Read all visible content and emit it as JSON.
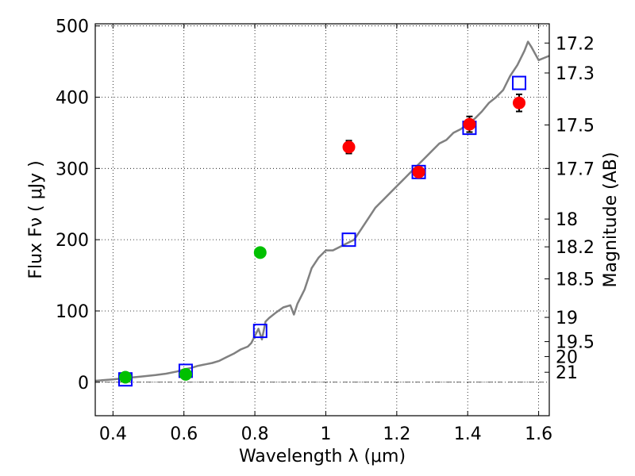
{
  "chart_data": {
    "type": "scatter",
    "xlabel": "Wavelength  λ (μm)",
    "ylabel": "Flux  Fν  ( μJy )",
    "ylabel_right": "Magnitude (AB)",
    "xlim": [
      0.35,
      1.63
    ],
    "ylim": [
      -47,
      503
    ],
    "grid": true,
    "x_ticks": [
      0.4,
      0.6,
      0.8,
      1.0,
      1.2,
      1.4,
      1.6
    ],
    "x_tick_labels": [
      "0.4",
      "0.6",
      "0.8",
      "1",
      "1.2",
      "1.4",
      "1.6"
    ],
    "y_ticks": [
      0,
      100,
      200,
      300,
      400,
      500
    ],
    "y_tick_labels": [
      "0",
      "100",
      "200",
      "300",
      "400",
      "500"
    ],
    "right_ticks": [
      {
        "flux": 476,
        "label": "17.2"
      },
      {
        "flux": 434,
        "label": "17.3"
      },
      {
        "flux": 361,
        "label": "17.5"
      },
      {
        "flux": 300,
        "label": "17.7"
      },
      {
        "flux": 229,
        "label": "18"
      },
      {
        "flux": 190,
        "label": "18.2"
      },
      {
        "flux": 145,
        "label": "18.5"
      },
      {
        "flux": 91,
        "label": "19"
      },
      {
        "flux": 57,
        "label": "19.5"
      },
      {
        "flux": 36,
        "label": "20"
      },
      {
        "flux": 14,
        "label": "21"
      }
    ],
    "zero_line": 0,
    "series": [
      {
        "kind": "line",
        "color": "#808080",
        "points": [
          [
            0.35,
            2
          ],
          [
            0.4,
            4
          ],
          [
            0.44,
            6
          ],
          [
            0.48,
            8
          ],
          [
            0.52,
            10
          ],
          [
            0.55,
            12
          ],
          [
            0.58,
            15
          ],
          [
            0.6,
            18
          ],
          [
            0.62,
            20
          ],
          [
            0.64,
            23
          ],
          [
            0.66,
            25
          ],
          [
            0.68,
            27
          ],
          [
            0.7,
            30
          ],
          [
            0.72,
            35
          ],
          [
            0.74,
            40
          ],
          [
            0.76,
            46
          ],
          [
            0.78,
            50
          ],
          [
            0.79,
            55
          ],
          [
            0.8,
            65
          ],
          [
            0.81,
            75
          ],
          [
            0.82,
            60
          ],
          [
            0.83,
            85
          ],
          [
            0.84,
            90
          ],
          [
            0.86,
            98
          ],
          [
            0.88,
            105
          ],
          [
            0.9,
            108
          ],
          [
            0.91,
            95
          ],
          [
            0.92,
            110
          ],
          [
            0.94,
            130
          ],
          [
            0.96,
            160
          ],
          [
            0.98,
            175
          ],
          [
            1.0,
            185
          ],
          [
            1.02,
            185
          ],
          [
            1.04,
            190
          ],
          [
            1.06,
            195
          ],
          [
            1.08,
            200
          ],
          [
            1.1,
            215
          ],
          [
            1.12,
            230
          ],
          [
            1.14,
            245
          ],
          [
            1.16,
            255
          ],
          [
            1.18,
            265
          ],
          [
            1.2,
            275
          ],
          [
            1.22,
            285
          ],
          [
            1.24,
            295
          ],
          [
            1.26,
            305
          ],
          [
            1.28,
            315
          ],
          [
            1.3,
            325
          ],
          [
            1.32,
            335
          ],
          [
            1.34,
            340
          ],
          [
            1.36,
            350
          ],
          [
            1.38,
            355
          ],
          [
            1.4,
            362
          ],
          [
            1.42,
            370
          ],
          [
            1.44,
            380
          ],
          [
            1.46,
            392
          ],
          [
            1.48,
            400
          ],
          [
            1.5,
            410
          ],
          [
            1.52,
            430
          ],
          [
            1.54,
            445
          ],
          [
            1.56,
            465
          ],
          [
            1.57,
            478
          ],
          [
            1.58,
            470
          ],
          [
            1.6,
            452
          ],
          [
            1.63,
            458
          ]
        ]
      },
      {
        "kind": "open-square",
        "color": "#0000ff",
        "points": [
          [
            0.435,
            4
          ],
          [
            0.605,
            16
          ],
          [
            0.815,
            72
          ],
          [
            1.065,
            200
          ],
          [
            1.262,
            295
          ],
          [
            1.405,
            357
          ],
          [
            1.545,
            420
          ]
        ]
      },
      {
        "kind": "filled-circle",
        "color": "#00c000",
        "points": [
          [
            0.435,
            7,
            3
          ],
          [
            0.605,
            11,
            3
          ],
          [
            0.815,
            182,
            5
          ]
        ]
      },
      {
        "kind": "filled-circle",
        "color": "#ff0000",
        "points": [
          [
            1.065,
            330,
            9
          ],
          [
            1.262,
            295,
            4
          ],
          [
            1.405,
            362,
            11
          ],
          [
            1.545,
            392,
            12
          ]
        ]
      }
    ]
  }
}
